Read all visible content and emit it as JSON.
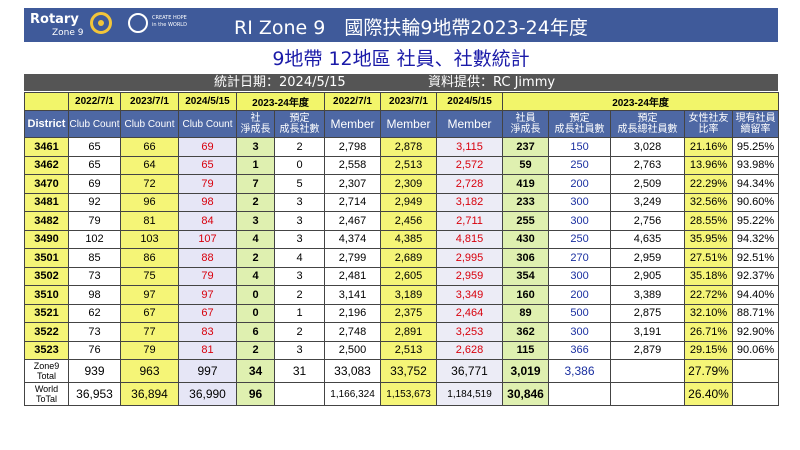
{
  "header": {
    "logo_rotary": "Rotary",
    "logo_zone": "Zone 9",
    "logo_hope_line1": "CREATE HOPE",
    "logo_hope_line2": "in the WORLD",
    "title": "RI Zone 9　國際扶輪9地帶2023-24年度"
  },
  "subtitle": "9地帶 12地區 社員、社數統計",
  "dateline": {
    "date": "統計日期：2024/5/15",
    "provider": "資料提供：RC Jimmy"
  },
  "table": {
    "top_headers": [
      "",
      "2022/7/1",
      "2023/7/1",
      "2024/5/15",
      "2023-24年度",
      "2022/7/1",
      "2023/7/1",
      "2024/5/15",
      "2023-24年度"
    ],
    "col_headers": [
      "District",
      "Club Count",
      "Club Count",
      "Club Count",
      "社\n淨成長",
      "預定\n成長社數",
      "Member",
      "Member",
      "Member",
      "社員\n淨成長",
      "預定\n成長社員數",
      "預定\n成長總社員數",
      "女性社友\n比率",
      "現有社員\n續留率"
    ],
    "rows": [
      [
        "3461",
        "65",
        "66",
        "69",
        "3",
        "2",
        "2,798",
        "2,878",
        "3,115",
        "237",
        "150",
        "3,028",
        "21.16%",
        "95.25%"
      ],
      [
        "3462",
        "65",
        "64",
        "65",
        "1",
        "0",
        "2,558",
        "2,513",
        "2,572",
        "59",
        "250",
        "2,763",
        "13.96%",
        "93.98%"
      ],
      [
        "3470",
        "69",
        "72",
        "79",
        "7",
        "5",
        "2,307",
        "2,309",
        "2,728",
        "419",
        "200",
        "2,509",
        "22.29%",
        "94.34%"
      ],
      [
        "3481",
        "92",
        "96",
        "98",
        "2",
        "3",
        "2,714",
        "2,949",
        "3,182",
        "233",
        "300",
        "3,249",
        "32.56%",
        "90.60%"
      ],
      [
        "3482",
        "79",
        "81",
        "84",
        "3",
        "3",
        "2,467",
        "2,456",
        "2,711",
        "255",
        "300",
        "2,756",
        "28.55%",
        "95.22%"
      ],
      [
        "3490",
        "102",
        "103",
        "107",
        "4",
        "3",
        "4,374",
        "4,385",
        "4,815",
        "430",
        "250",
        "4,635",
        "35.95%",
        "94.32%"
      ],
      [
        "3501",
        "85",
        "86",
        "88",
        "2",
        "4",
        "2,799",
        "2,689",
        "2,995",
        "306",
        "270",
        "2,959",
        "27.51%",
        "92.51%"
      ],
      [
        "3502",
        "73",
        "75",
        "79",
        "4",
        "3",
        "2,481",
        "2,605",
        "2,959",
        "354",
        "300",
        "2,905",
        "35.18%",
        "92.37%"
      ],
      [
        "3510",
        "98",
        "97",
        "97",
        "0",
        "2",
        "3,141",
        "3,189",
        "3,349",
        "160",
        "200",
        "3,389",
        "22.72%",
        "94.40%"
      ],
      [
        "3521",
        "62",
        "67",
        "67",
        "0",
        "1",
        "2,196",
        "2,375",
        "2,464",
        "89",
        "500",
        "2,875",
        "32.10%",
        "88.71%"
      ],
      [
        "3522",
        "73",
        "77",
        "83",
        "6",
        "2",
        "2,748",
        "2,891",
        "3,253",
        "362",
        "300",
        "3,191",
        "26.71%",
        "92.90%"
      ],
      [
        "3523",
        "76",
        "79",
        "81",
        "2",
        "3",
        "2,500",
        "2,513",
        "2,628",
        "115",
        "366",
        "2,879",
        "29.15%",
        "90.06%"
      ]
    ],
    "zone_total": [
      "Zone9\nTotal",
      "939",
      "963",
      "997",
      "34",
      "31",
      "33,083",
      "33,752",
      "36,771",
      "3,019",
      "3,386",
      "",
      "27.79%",
      ""
    ],
    "world_total": [
      "World\nToTal",
      "36,953",
      "36,894",
      "36,990",
      "96",
      "",
      "1,166,324",
      "1,153,673",
      "1,184,519",
      "30,846",
      "",
      "",
      "26.40%",
      ""
    ]
  }
}
